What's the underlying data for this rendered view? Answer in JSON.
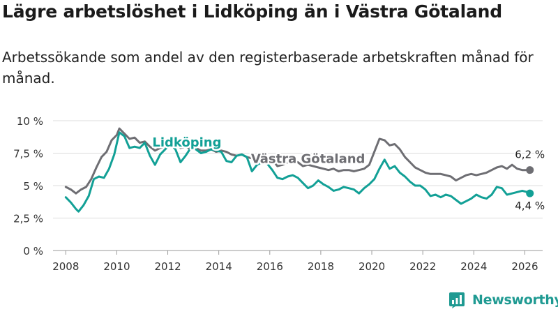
{
  "header": {
    "title": "Lägre arbetslöshet i Lidköping än i Västra Götaland",
    "subtitle": "Arbetssökande som andel av den registerbaserade arbetskraften månad för månad."
  },
  "brand": {
    "name": "Newsworthy",
    "color": "#1f9a92"
  },
  "chart_data": {
    "type": "line",
    "title": "Lägre arbetslöshet i Lidköping än i Västra Götaland",
    "subtitle": "Arbetssökande som andel av den registerbaserade arbetskraften månad för månad.",
    "xlabel": "",
    "ylabel": "",
    "xlim": [
      2007.5,
      2026.7
    ],
    "ylim": [
      0,
      10
    ],
    "grid": true,
    "x_ticks": [
      2008,
      2010,
      2012,
      2014,
      2016,
      2018,
      2020,
      2022,
      2024,
      2026
    ],
    "x_tick_labels": [
      "2008",
      "2010",
      "2012",
      "2014",
      "2016",
      "2018",
      "2020",
      "2022",
      "2024",
      "2026"
    ],
    "y_ticks": [
      0,
      2.5,
      5,
      7.5,
      10
    ],
    "y_tick_labels": [
      "0 %",
      "2,5 %",
      "5 %",
      "7,5 %",
      "10 %"
    ],
    "series": [
      {
        "name": "Västra Götaland",
        "color": "#6e6e73",
        "label_x": 2017.5,
        "label_y": 6.75,
        "end_label": "6,2 %",
        "points": [
          [
            2008.0,
            4.9
          ],
          [
            2008.2,
            4.7
          ],
          [
            2008.4,
            4.4
          ],
          [
            2008.6,
            4.7
          ],
          [
            2008.8,
            4.9
          ],
          [
            2009.0,
            5.5
          ],
          [
            2009.2,
            6.4
          ],
          [
            2009.4,
            7.2
          ],
          [
            2009.6,
            7.6
          ],
          [
            2009.8,
            8.5
          ],
          [
            2010.0,
            8.9
          ],
          [
            2010.1,
            9.4
          ],
          [
            2010.3,
            9.0
          ],
          [
            2010.5,
            8.6
          ],
          [
            2010.7,
            8.7
          ],
          [
            2010.9,
            8.3
          ],
          [
            2011.1,
            8.4
          ],
          [
            2011.3,
            8.0
          ],
          [
            2011.5,
            7.7
          ],
          [
            2011.7,
            7.9
          ],
          [
            2011.9,
            8.0
          ],
          [
            2012.1,
            8.5
          ],
          [
            2012.3,
            8.3
          ],
          [
            2012.5,
            7.9
          ],
          [
            2012.7,
            8.0
          ],
          [
            2012.9,
            7.8
          ],
          [
            2013.1,
            7.9
          ],
          [
            2013.3,
            7.7
          ],
          [
            2013.5,
            7.7
          ],
          [
            2013.7,
            7.8
          ],
          [
            2013.9,
            7.6
          ],
          [
            2014.1,
            7.7
          ],
          [
            2014.3,
            7.6
          ],
          [
            2014.5,
            7.4
          ],
          [
            2014.7,
            7.3
          ],
          [
            2014.9,
            7.4
          ],
          [
            2015.1,
            7.2
          ],
          [
            2015.3,
            7.1
          ],
          [
            2015.5,
            7.1
          ],
          [
            2015.7,
            7.2
          ],
          [
            2015.9,
            7.0
          ],
          [
            2016.1,
            7.0
          ],
          [
            2016.3,
            6.5
          ],
          [
            2016.5,
            6.6
          ],
          [
            2016.7,
            6.8
          ],
          [
            2016.9,
            6.9
          ],
          [
            2017.1,
            6.8
          ],
          [
            2017.3,
            6.5
          ],
          [
            2017.5,
            6.6
          ],
          [
            2017.7,
            6.5
          ],
          [
            2017.9,
            6.4
          ],
          [
            2018.1,
            6.3
          ],
          [
            2018.3,
            6.2
          ],
          [
            2018.5,
            6.3
          ],
          [
            2018.7,
            6.1
          ],
          [
            2018.9,
            6.2
          ],
          [
            2019.1,
            6.2
          ],
          [
            2019.3,
            6.1
          ],
          [
            2019.5,
            6.2
          ],
          [
            2019.7,
            6.3
          ],
          [
            2019.9,
            6.6
          ],
          [
            2020.1,
            7.6
          ],
          [
            2020.3,
            8.6
          ],
          [
            2020.5,
            8.5
          ],
          [
            2020.7,
            8.1
          ],
          [
            2020.9,
            8.2
          ],
          [
            2021.1,
            7.8
          ],
          [
            2021.3,
            7.2
          ],
          [
            2021.5,
            6.8
          ],
          [
            2021.7,
            6.4
          ],
          [
            2021.9,
            6.2
          ],
          [
            2022.1,
            6.0
          ],
          [
            2022.3,
            5.9
          ],
          [
            2022.5,
            5.9
          ],
          [
            2022.7,
            5.9
          ],
          [
            2022.9,
            5.8
          ],
          [
            2023.1,
            5.7
          ],
          [
            2023.3,
            5.4
          ],
          [
            2023.5,
            5.6
          ],
          [
            2023.7,
            5.8
          ],
          [
            2023.9,
            5.9
          ],
          [
            2024.1,
            5.8
          ],
          [
            2024.3,
            5.9
          ],
          [
            2024.5,
            6.0
          ],
          [
            2024.7,
            6.2
          ],
          [
            2024.9,
            6.4
          ],
          [
            2025.1,
            6.5
          ],
          [
            2025.3,
            6.3
          ],
          [
            2025.5,
            6.6
          ],
          [
            2025.7,
            6.3
          ],
          [
            2025.9,
            6.2
          ],
          [
            2026.1,
            6.2
          ],
          [
            2026.2,
            6.2
          ]
        ]
      },
      {
        "name": "Lidköping",
        "color": "#12a096",
        "label_x": 2012.75,
        "label_y": 8.0,
        "end_label": "4,4 %",
        "points": [
          [
            2008.0,
            4.1
          ],
          [
            2008.2,
            3.7
          ],
          [
            2008.4,
            3.2
          ],
          [
            2008.5,
            3.0
          ],
          [
            2008.7,
            3.5
          ],
          [
            2008.9,
            4.2
          ],
          [
            2009.1,
            5.5
          ],
          [
            2009.3,
            5.7
          ],
          [
            2009.5,
            5.6
          ],
          [
            2009.7,
            6.3
          ],
          [
            2009.9,
            7.4
          ],
          [
            2010.1,
            9.1
          ],
          [
            2010.3,
            8.8
          ],
          [
            2010.5,
            7.9
          ],
          [
            2010.7,
            8.0
          ],
          [
            2010.9,
            7.9
          ],
          [
            2011.1,
            8.3
          ],
          [
            2011.3,
            7.3
          ],
          [
            2011.5,
            6.6
          ],
          [
            2011.7,
            7.4
          ],
          [
            2011.9,
            7.8
          ],
          [
            2012.1,
            8.2
          ],
          [
            2012.3,
            7.8
          ],
          [
            2012.5,
            6.8
          ],
          [
            2012.7,
            7.3
          ],
          [
            2012.9,
            7.9
          ],
          [
            2013.1,
            7.8
          ],
          [
            2013.3,
            7.5
          ],
          [
            2013.5,
            7.6
          ],
          [
            2013.7,
            7.8
          ],
          [
            2013.9,
            7.7
          ],
          [
            2014.1,
            7.6
          ],
          [
            2014.3,
            6.9
          ],
          [
            2014.5,
            6.8
          ],
          [
            2014.7,
            7.3
          ],
          [
            2014.9,
            7.4
          ],
          [
            2015.1,
            7.2
          ],
          [
            2015.3,
            6.1
          ],
          [
            2015.5,
            6.6
          ],
          [
            2015.7,
            6.8
          ],
          [
            2015.9,
            6.7
          ],
          [
            2016.1,
            6.2
          ],
          [
            2016.3,
            5.6
          ],
          [
            2016.5,
            5.5
          ],
          [
            2016.7,
            5.7
          ],
          [
            2016.9,
            5.8
          ],
          [
            2017.1,
            5.6
          ],
          [
            2017.3,
            5.2
          ],
          [
            2017.5,
            4.8
          ],
          [
            2017.7,
            5.0
          ],
          [
            2017.9,
            5.4
          ],
          [
            2018.1,
            5.1
          ],
          [
            2018.3,
            4.9
          ],
          [
            2018.5,
            4.6
          ],
          [
            2018.7,
            4.7
          ],
          [
            2018.9,
            4.9
          ],
          [
            2019.1,
            4.8
          ],
          [
            2019.3,
            4.7
          ],
          [
            2019.5,
            4.4
          ],
          [
            2019.7,
            4.8
          ],
          [
            2019.9,
            5.1
          ],
          [
            2020.1,
            5.5
          ],
          [
            2020.3,
            6.3
          ],
          [
            2020.5,
            7.0
          ],
          [
            2020.7,
            6.3
          ],
          [
            2020.9,
            6.5
          ],
          [
            2021.1,
            6.0
          ],
          [
            2021.3,
            5.7
          ],
          [
            2021.5,
            5.3
          ],
          [
            2021.7,
            5.0
          ],
          [
            2021.9,
            5.0
          ],
          [
            2022.1,
            4.7
          ],
          [
            2022.3,
            4.2
          ],
          [
            2022.5,
            4.3
          ],
          [
            2022.7,
            4.1
          ],
          [
            2022.9,
            4.3
          ],
          [
            2023.1,
            4.2
          ],
          [
            2023.3,
            3.9
          ],
          [
            2023.5,
            3.6
          ],
          [
            2023.7,
            3.8
          ],
          [
            2023.9,
            4.0
          ],
          [
            2024.1,
            4.3
          ],
          [
            2024.3,
            4.1
          ],
          [
            2024.5,
            4.0
          ],
          [
            2024.7,
            4.3
          ],
          [
            2024.9,
            4.9
          ],
          [
            2025.1,
            4.8
          ],
          [
            2025.3,
            4.3
          ],
          [
            2025.5,
            4.4
          ],
          [
            2025.7,
            4.5
          ],
          [
            2025.9,
            4.6
          ],
          [
            2026.1,
            4.5
          ],
          [
            2026.2,
            4.4
          ]
        ]
      }
    ]
  }
}
